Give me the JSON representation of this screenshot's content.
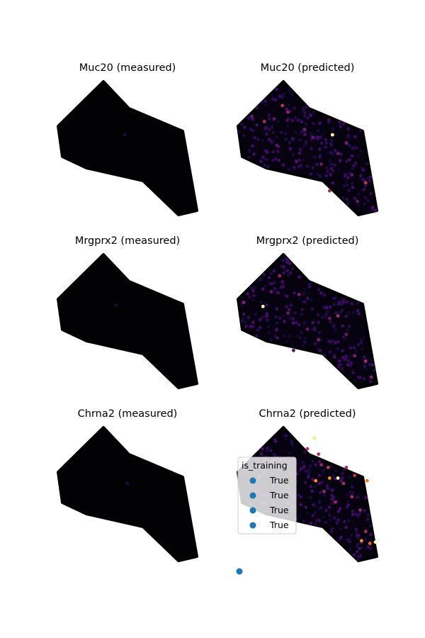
{
  "chart_data": [
    {
      "type": "scatter",
      "title": "Muc20 (measured)",
      "xlabel": "",
      "ylabel": "",
      "grid": false,
      "axes_visible": false,
      "colormap": "inferno",
      "points": [
        {
          "x": 0.48,
          "y": 0.6,
          "value": 0.12
        }
      ]
    },
    {
      "type": "scatter",
      "title": "Muc20 (predicted)",
      "xlabel": "",
      "ylabel": "",
      "grid": false,
      "axes_visible": false,
      "colormap": "inferno",
      "points": [
        {
          "x": 0.1,
          "y": 0.74,
          "value": 0.3
        },
        {
          "x": 0.19,
          "y": 0.7,
          "value": 0.45
        },
        {
          "x": 0.26,
          "y": 0.72,
          "value": 0.3
        },
        {
          "x": 0.32,
          "y": 0.82,
          "value": 0.5
        },
        {
          "x": 0.36,
          "y": 0.77,
          "value": 0.4
        },
        {
          "x": 0.48,
          "y": 0.64,
          "value": 0.35
        },
        {
          "x": 0.54,
          "y": 0.58,
          "value": 0.3
        },
        {
          "x": 0.68,
          "y": 0.6,
          "value": 1.0
        },
        {
          "x": 0.72,
          "y": 0.46,
          "value": 0.3
        },
        {
          "x": 0.78,
          "y": 0.54,
          "value": 0.35
        },
        {
          "x": 0.6,
          "y": 0.38,
          "value": 0.3
        },
        {
          "x": 0.66,
          "y": 0.18,
          "value": 0.45
        },
        {
          "x": 0.82,
          "y": 0.3,
          "value": 0.3
        },
        {
          "x": 0.92,
          "y": 0.24,
          "value": 0.5
        },
        {
          "x": 0.42,
          "y": 0.4,
          "value": 0.25
        },
        {
          "x": 0.28,
          "y": 0.52,
          "value": 0.25
        },
        {
          "x": 0.86,
          "y": 0.1,
          "value": 0.3
        }
      ]
    },
    {
      "type": "scatter",
      "title": "Mrgprx2 (measured)",
      "xlabel": "",
      "ylabel": "",
      "grid": false,
      "axes_visible": false,
      "colormap": "inferno",
      "points": [
        {
          "x": 0.42,
          "y": 0.62,
          "value": 0.12
        }
      ]
    },
    {
      "type": "scatter",
      "title": "Mrgprx2 (predicted)",
      "xlabel": "",
      "ylabel": "",
      "grid": false,
      "axes_visible": false,
      "colormap": "inferno",
      "points": [
        {
          "x": 0.04,
          "y": 0.64,
          "value": 0.35
        },
        {
          "x": 0.18,
          "y": 0.61,
          "value": 1.0
        },
        {
          "x": 0.24,
          "y": 0.72,
          "value": 0.3
        },
        {
          "x": 0.3,
          "y": 0.84,
          "value": 0.4
        },
        {
          "x": 0.36,
          "y": 0.56,
          "value": 0.3
        },
        {
          "x": 0.44,
          "y": 0.7,
          "value": 0.35
        },
        {
          "x": 0.5,
          "y": 0.44,
          "value": 0.3
        },
        {
          "x": 0.58,
          "y": 0.36,
          "value": 0.35
        },
        {
          "x": 0.66,
          "y": 0.52,
          "value": 0.3
        },
        {
          "x": 0.72,
          "y": 0.54,
          "value": 0.45
        },
        {
          "x": 0.78,
          "y": 0.4,
          "value": 0.3
        },
        {
          "x": 0.84,
          "y": 0.24,
          "value": 0.35
        },
        {
          "x": 0.92,
          "y": 0.2,
          "value": 0.45
        },
        {
          "x": 0.96,
          "y": 0.08,
          "value": 0.35
        },
        {
          "x": 0.4,
          "y": 0.28,
          "value": 0.25
        }
      ]
    },
    {
      "type": "scatter",
      "title": "Chrna2 (measured)",
      "xlabel": "",
      "ylabel": "",
      "grid": false,
      "axes_visible": false,
      "colormap": "inferno",
      "points": [
        {
          "x": 0.5,
          "y": 0.58,
          "value": 0.12
        }
      ]
    },
    {
      "type": "scatter",
      "title": "Chrna2 (predicted)",
      "xlabel": "",
      "ylabel": "",
      "grid": false,
      "axes_visible": false,
      "colormap": "inferno",
      "legend": {
        "title": "is_training",
        "placement": "center-left",
        "entries": [
          "True",
          "True",
          "True",
          "True"
        ],
        "color": "#1f77b4"
      },
      "extra_points": [
        {
          "x": 0.0,
          "y": -0.08,
          "color": "#1f77b4"
        }
      ],
      "points": [
        {
          "x": 0.55,
          "y": 0.92,
          "value": 0.95
        },
        {
          "x": 0.5,
          "y": 0.84,
          "value": 0.5
        },
        {
          "x": 0.58,
          "y": 0.8,
          "value": 0.45
        },
        {
          "x": 0.6,
          "y": 0.72,
          "value": 0.4
        },
        {
          "x": 0.65,
          "y": 0.7,
          "value": 0.5
        },
        {
          "x": 0.66,
          "y": 0.62,
          "value": 0.75
        },
        {
          "x": 0.72,
          "y": 0.62,
          "value": 1.0
        },
        {
          "x": 0.56,
          "y": 0.6,
          "value": 0.75
        },
        {
          "x": 0.76,
          "y": 0.58,
          "value": 0.45
        },
        {
          "x": 0.84,
          "y": 0.64,
          "value": 0.5
        },
        {
          "x": 0.93,
          "y": 0.6,
          "value": 0.7
        },
        {
          "x": 0.82,
          "y": 0.48,
          "value": 0.45
        },
        {
          "x": 0.88,
          "y": 0.38,
          "value": 0.4
        },
        {
          "x": 0.92,
          "y": 0.22,
          "value": 0.45
        },
        {
          "x": 0.95,
          "y": 0.13,
          "value": 0.65
        },
        {
          "x": 0.99,
          "y": 0.14,
          "value": 1.0
        },
        {
          "x": 0.89,
          "y": 0.15,
          "value": 0.75
        },
        {
          "x": 0.7,
          "y": 0.44,
          "value": 0.4
        },
        {
          "x": 0.78,
          "y": 0.7,
          "value": 0.45
        },
        {
          "x": 0.62,
          "y": 0.52,
          "value": 0.4
        }
      ]
    }
  ]
}
